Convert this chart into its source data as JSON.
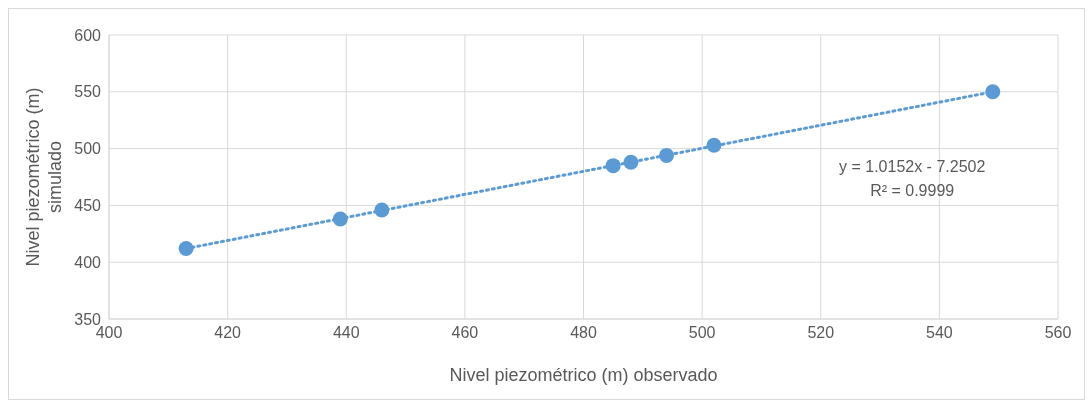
{
  "chart_data": {
    "type": "scatter",
    "xlabel": "Nivel piezométrico (m) observado",
    "ylabel": "Nivel piezométrico (m) simulado",
    "x": [
      413,
      439,
      446,
      485,
      488,
      494,
      502,
      549
    ],
    "series": [
      {
        "color": "#5b9bd5",
        "values": [
          412,
          438,
          446,
          485,
          488,
          494,
          503,
          550
        ],
        "marker": "circle"
      },
      {
        "type": "line",
        "color": "#5b9bd5",
        "x": [
          413,
          549
        ],
        "values": [
          412,
          550
        ],
        "line_style": "dotted"
      }
    ],
    "xlim": [
      400,
      560
    ],
    "xticks": [
      400,
      420,
      440,
      460,
      480,
      500,
      520,
      540,
      560
    ],
    "ylim": [
      350,
      600
    ],
    "yticks": [
      350,
      400,
      450,
      500,
      550,
      600
    ],
    "grid": true,
    "annotations": [
      "y = 1.0152x - 7.2502",
      "R² = 0.9999"
    ]
  }
}
